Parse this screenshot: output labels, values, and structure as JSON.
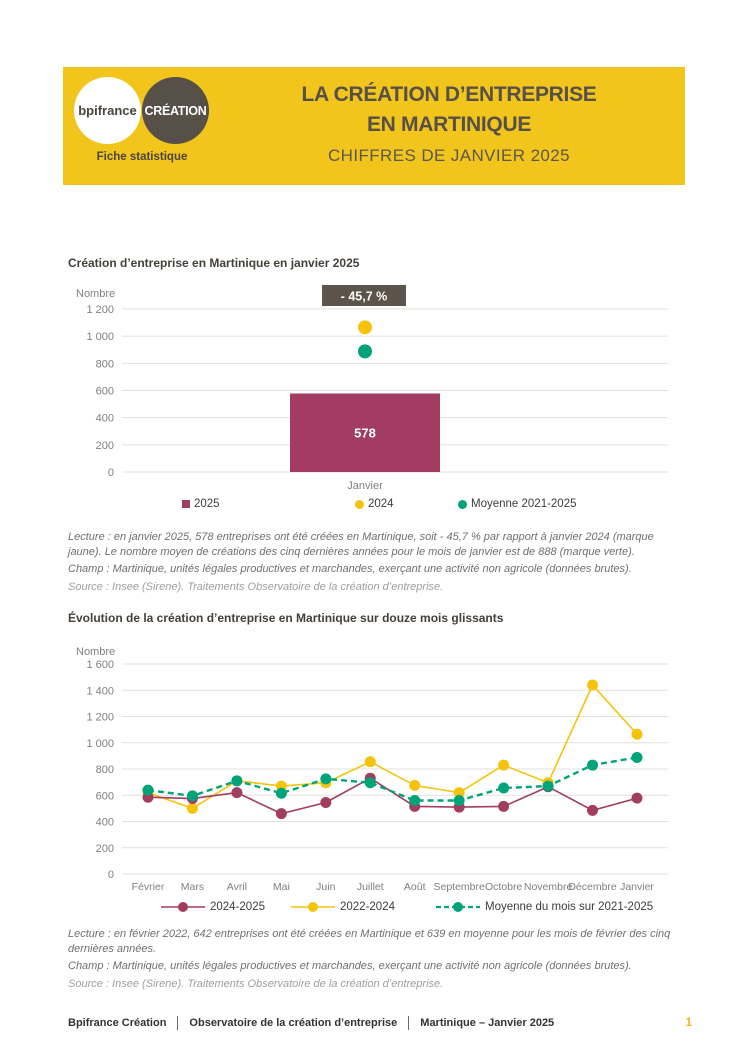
{
  "header": {
    "logo_bpifrance": "bpifrance",
    "logo_creation": "CRÉATION",
    "tagline": "Fiche statistique",
    "title_line1": "LA CRÉATION D’ENTREPRISE",
    "title_line2": "EN MARTINIQUE",
    "subtitle": "CHIFFRES DE JANVIER 2025",
    "background": "#F2C51D"
  },
  "colors": {
    "header_yellow": "#F2C51D",
    "dark_brown": "#575049",
    "maroon": "#A23C60",
    "yellow": "#F5C30D",
    "green": "#00A478",
    "grid": "#E4E1DC",
    "tick_text": "#7F7F7F",
    "page_number_yellow": "#F2B117"
  },
  "chart_data": [
    {
      "type": "bar",
      "title": "Création d’entreprise en Martinique en janvier 2025",
      "ylabel": "Nombre",
      "ylim": [
        0,
        1200
      ],
      "ytick_step": 200,
      "grid": true,
      "legend_position": "bottom",
      "categories": [
        "Janvier"
      ],
      "annotation": "- 45,7 %",
      "annotation_bg": "#5C534B",
      "series": [
        {
          "name": "2025",
          "marker": "square",
          "color": "#A23C60",
          "values": [
            578
          ]
        },
        {
          "name": "2024",
          "marker": "circle",
          "color": "#F5C30D",
          "values": [
            1065
          ]
        },
        {
          "name": "Moyenne 2021-2025",
          "marker": "circle",
          "color": "#00A478",
          "values": [
            888
          ]
        }
      ]
    },
    {
      "type": "line",
      "title": "Évolution de la création d’entreprise en Martinique sur douze mois glissants",
      "ylabel": "Nombre",
      "ylim": [
        0,
        1600
      ],
      "ytick_step": 200,
      "grid": true,
      "legend_position": "bottom",
      "categories": [
        "Février",
        "Mars",
        "Avril",
        "Mai",
        "Juin",
        "Juillet",
        "Août",
        "Septembre",
        "Octobre",
        "Novembre",
        "Décembre",
        "Janvier"
      ],
      "series": [
        {
          "name": "2024-2025",
          "color": "#A23C60",
          "dashed": false,
          "values": [
            585,
            575,
            620,
            460,
            545,
            730,
            515,
            510,
            515,
            665,
            485,
            578
          ]
        },
        {
          "name": "2022-2024",
          "color": "#F5C30D",
          "dashed": false,
          "values": [
            620,
            500,
            710,
            670,
            695,
            855,
            675,
            620,
            830,
            695,
            1440,
            1065
          ]
        },
        {
          "name": "Moyenne du mois sur 2021-2025",
          "color": "#00A478",
          "dashed": true,
          "values": [
            639,
            595,
            710,
            615,
            725,
            695,
            560,
            560,
            655,
            670,
            830,
            888
          ]
        }
      ]
    }
  ],
  "notes1": {
    "lecture": "Lecture : en janvier 2025, 578 entreprises ont été créées en Martinique, soit - 45,7 % par rapport à janvier 2024 (marque jaune). Le nombre moyen de créations des cinq dernières années pour le mois de janvier est de 888 (marque verte).",
    "champ": "Champ : Martinique, unités légales productives et marchandes, exerçant une activité non agricole (données brutes).",
    "source": "Source : Insee (Sirene). Traitements Observatoire de la création d’entreprise."
  },
  "notes2": {
    "lecture": "Lecture : en février 2022, 642 entreprises ont été créées en Martinique et 639 en moyenne pour les mois de février des cinq dernières années.",
    "champ": "Champ : Martinique, unités légales productives et marchandes, exerçant une activité non agricole (données brutes).",
    "source": "Source : Insee (Sirene). Traitements Observatoire de la création d’entreprise."
  },
  "footer": {
    "items": [
      "Bpifrance Création",
      "Observatoire de la création d’entreprise",
      "Martinique – Janvier 2025"
    ],
    "page_number": "1"
  }
}
